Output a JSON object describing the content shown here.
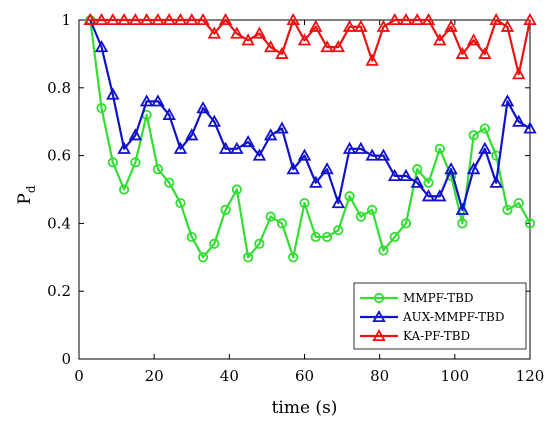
{
  "chart_data": {
    "type": "line",
    "xlabel": "time (s)",
    "ylabel": "P",
    "ylabel_subscript": "d",
    "xlim": [
      0,
      120
    ],
    "ylim": [
      0,
      1
    ],
    "xticks": [
      0,
      20,
      40,
      60,
      80,
      100,
      120
    ],
    "yticks": [
      0,
      0.2,
      0.4,
      0.6,
      0.8,
      1
    ],
    "ytick_labels": [
      "0",
      "0.2",
      "0.4",
      "0.6",
      "0.8",
      "1"
    ],
    "grid": false,
    "legend_position": "bottom-right",
    "series": [
      {
        "name": "MMPF-TBD",
        "color": "#33dd33",
        "marker": "circle",
        "x": [
          3,
          6,
          9,
          12,
          15,
          18,
          21,
          24,
          27,
          30,
          33,
          36,
          39,
          42,
          45,
          48,
          51,
          54,
          57,
          60,
          63,
          66,
          69,
          72,
          75,
          78,
          81,
          84,
          87,
          90,
          93,
          96,
          99,
          102,
          105,
          108,
          111,
          114,
          117,
          120
        ],
        "y": [
          1.0,
          0.74,
          0.58,
          0.5,
          0.58,
          0.72,
          0.56,
          0.52,
          0.46,
          0.36,
          0.3,
          0.34,
          0.44,
          0.5,
          0.3,
          0.34,
          0.42,
          0.4,
          0.3,
          0.46,
          0.36,
          0.36,
          0.38,
          0.48,
          0.42,
          0.44,
          0.32,
          0.36,
          0.4,
          0.56,
          0.52,
          0.62,
          0.54,
          0.4,
          0.66,
          0.68,
          0.6,
          0.44,
          0.46,
          0.4
        ]
      },
      {
        "name": "AUX-MMPF-TBD",
        "color": "#1111cc",
        "marker": "triangle",
        "x": [
          3,
          6,
          9,
          12,
          15,
          18,
          21,
          24,
          27,
          30,
          33,
          36,
          39,
          42,
          45,
          48,
          51,
          54,
          57,
          60,
          63,
          66,
          69,
          72,
          75,
          78,
          81,
          84,
          87,
          90,
          93,
          96,
          99,
          102,
          105,
          108,
          111,
          114,
          117,
          120
        ],
        "y": [
          1.0,
          0.92,
          0.78,
          0.62,
          0.66,
          0.76,
          0.76,
          0.72,
          0.62,
          0.66,
          0.74,
          0.7,
          0.62,
          0.62,
          0.64,
          0.6,
          0.66,
          0.68,
          0.56,
          0.6,
          0.52,
          0.56,
          0.46,
          0.62,
          0.62,
          0.6,
          0.6,
          0.54,
          0.54,
          0.52,
          0.48,
          0.48,
          0.56,
          0.44,
          0.56,
          0.62,
          0.52,
          0.76,
          0.7,
          0.68
        ]
      },
      {
        "name": "KA-PF-TBD",
        "color": "#ee1111",
        "marker": "triangle",
        "x": [
          3,
          6,
          9,
          12,
          15,
          18,
          21,
          24,
          27,
          30,
          33,
          36,
          39,
          42,
          45,
          48,
          51,
          54,
          57,
          60,
          63,
          66,
          69,
          72,
          75,
          78,
          81,
          84,
          87,
          90,
          93,
          96,
          99,
          102,
          105,
          108,
          111,
          114,
          117,
          120
        ],
        "y": [
          1.0,
          1.0,
          1.0,
          1.0,
          1.0,
          1.0,
          1.0,
          1.0,
          1.0,
          1.0,
          1.0,
          0.96,
          1.0,
          0.96,
          0.94,
          0.96,
          0.92,
          0.9,
          1.0,
          0.94,
          0.98,
          0.92,
          0.92,
          0.98,
          0.98,
          0.88,
          0.98,
          1.0,
          1.0,
          1.0,
          1.0,
          0.94,
          0.98,
          0.9,
          0.94,
          0.9,
          1.0,
          0.98,
          0.84,
          1.0
        ]
      }
    ]
  }
}
